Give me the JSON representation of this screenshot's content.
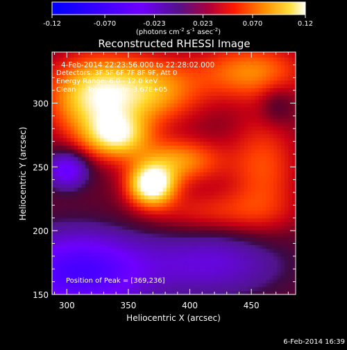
{
  "chart_data": {
    "type": "heatmap",
    "title": "Reconstructed RHESSI Image",
    "xlabel": "Heliocentric X (arcsec)",
    "ylabel": "Heliocentric Y (arcsec)",
    "xlim": [
      288,
      486
    ],
    "ylim": [
      150,
      340
    ],
    "x_ticks": [
      300,
      350,
      400,
      450
    ],
    "y_ticks": [
      150,
      200,
      250,
      300
    ],
    "colorbar": {
      "range": [
        -0.12,
        0.12
      ],
      "tick_labels": [
        "-0.12",
        "-0.070",
        "-0.023",
        "0.023",
        "0.070",
        "0.12"
      ],
      "tick_values": [
        -0.12,
        -0.07,
        -0.023,
        0.023,
        0.07,
        0.12
      ],
      "unit_prefix": "(photons cm",
      "unit_exp1": "-2",
      "unit_mid": " s",
      "unit_exp2": "-1",
      "unit_mid2": " asec",
      "unit_exp3": "-2",
      "unit_suffix": ")"
    },
    "annotations": [
      "4-Feb-2014 22:23:56.000 to 22:28:02.000",
      "Detectors: 3F 5F 6F 7F 8F 9F, Att 0",
      "Energy Range: 6.0 - 12.0 keV",
      "Clean     Total counts: 3.67E+05"
    ],
    "peak_label": "Position of Peak = [369,236]",
    "peak": [
      369,
      236
    ],
    "intensity_sources": [
      {
        "x": 369,
        "y": 236,
        "amp": 0.12,
        "sx": 13,
        "sy": 11
      },
      {
        "x": 340,
        "y": 275,
        "amp": 0.085,
        "sx": 18,
        "sy": 12
      },
      {
        "x": 390,
        "y": 255,
        "amp": 0.06,
        "sx": 25,
        "sy": 12
      },
      {
        "x": 320,
        "y": 305,
        "amp": 0.08,
        "sx": 25,
        "sy": 22
      },
      {
        "x": 365,
        "y": 310,
        "amp": 0.07,
        "sx": 30,
        "sy": 18
      },
      {
        "x": 450,
        "y": 325,
        "amp": 0.055,
        "sx": 30,
        "sy": 15
      },
      {
        "x": 460,
        "y": 250,
        "amp": 0.04,
        "sx": 20,
        "sy": 30
      },
      {
        "x": 420,
        "y": 215,
        "amp": 0.03,
        "sx": 40,
        "sy": 12
      },
      {
        "x": 300,
        "y": 248,
        "amp": -0.06,
        "sx": 12,
        "sy": 10
      },
      {
        "x": 310,
        "y": 168,
        "amp": -0.08,
        "sx": 40,
        "sy": 22
      },
      {
        "x": 420,
        "y": 175,
        "amp": -0.04,
        "sx": 40,
        "sy": 18
      },
      {
        "x": 470,
        "y": 300,
        "amp": -0.02,
        "sx": 10,
        "sy": 12
      }
    ]
  },
  "footer": {
    "timestamp": "6-Feb-2014 16:39"
  }
}
